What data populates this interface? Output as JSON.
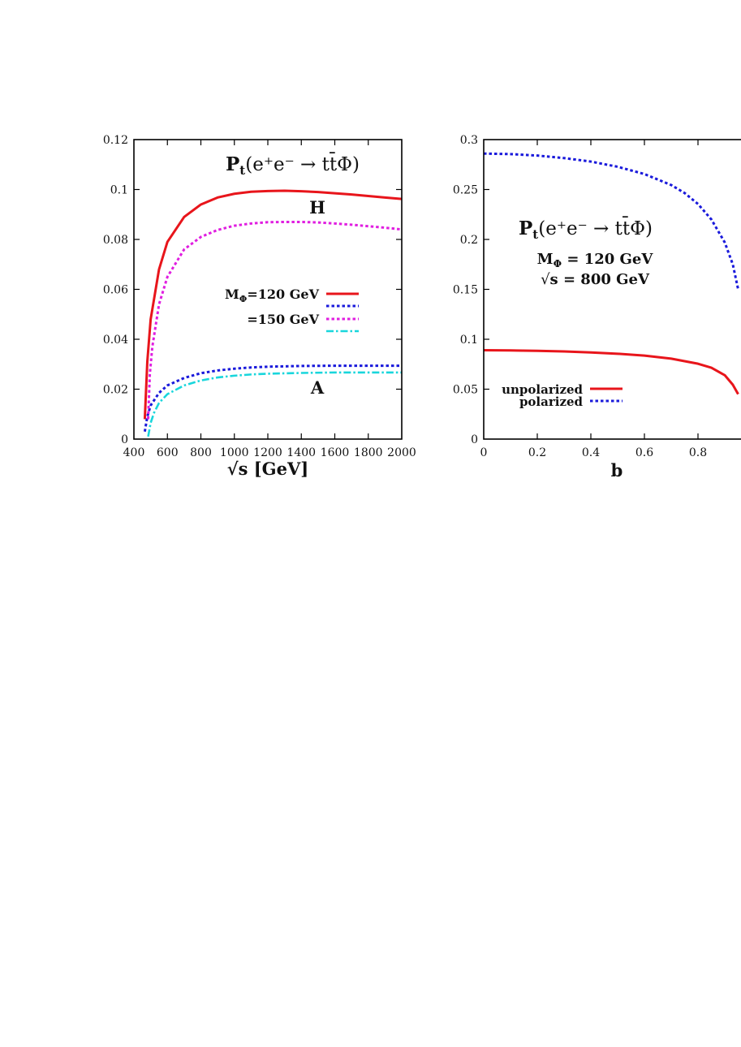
{
  "chart_data": [
    {
      "type": "line",
      "title": "P_t(e⁺e⁻ → tt̄Φ)",
      "title_parts": {
        "main": "P",
        "sub": "t",
        "rest": "(e⁺e⁻ → tt̄Φ)"
      },
      "xlabel": "√s [GeV]",
      "xlabel_parts": {
        "root": "√",
        "rest": "s [GeV]"
      },
      "ylabel": "",
      "xlim": [
        400,
        2000
      ],
      "ylim": [
        0,
        0.12
      ],
      "xticks": [
        400,
        600,
        800,
        1000,
        1200,
        1400,
        1600,
        1800,
        2000
      ],
      "xtick_labels": [
        "400",
        "600",
        "800",
        "1000",
        "1200",
        "1400",
        "1600",
        "1800",
        "2000"
      ],
      "yticks": [
        0,
        0.02,
        0.04,
        0.06,
        0.08,
        0.1,
        0.12
      ],
      "ytick_labels": [
        "0",
        "0.02",
        "0.04",
        "0.06",
        "0.08",
        "0.1",
        "0.12"
      ],
      "annotations": {
        "H": "H",
        "A": "A"
      },
      "legend": {
        "position": "center-right",
        "row1_main": "M",
        "row1_sub": "Φ",
        "row1_rest": "=120 GeV",
        "row2_text": "=150 GeV"
      },
      "series": [
        {
          "key": "H120",
          "color": "#e8151b",
          "style": "solid",
          "x": [
            465,
            480,
            500,
            550,
            600,
            700,
            800,
            900,
            1000,
            1100,
            1200,
            1300,
            1400,
            1500,
            1600,
            1700,
            1800,
            1900,
            2000
          ],
          "y": [
            0.008,
            0.031,
            0.048,
            0.068,
            0.079,
            0.089,
            0.094,
            0.0968,
            0.0983,
            0.0991,
            0.0994,
            0.0995,
            0.0993,
            0.099,
            0.0985,
            0.098,
            0.0974,
            0.0968,
            0.0962
          ]
        },
        {
          "key": "A120",
          "color": "#1a1adb",
          "style": "dotted",
          "x": [
            465,
            480,
            500,
            550,
            600,
            700,
            800,
            900,
            1000,
            1100,
            1200,
            1400,
            1600,
            1800,
            2000
          ],
          "y": [
            0.003,
            0.009,
            0.0135,
            0.0185,
            0.0215,
            0.0245,
            0.0264,
            0.0275,
            0.0282,
            0.0287,
            0.029,
            0.0293,
            0.0294,
            0.0294,
            0.0294
          ]
        },
        {
          "key": "H150",
          "color": "#e01ee0",
          "style": "dotted",
          "x": [
            485,
            495,
            510,
            550,
            600,
            700,
            800,
            900,
            1000,
            1100,
            1200,
            1300,
            1400,
            1500,
            1600,
            1700,
            1800,
            1900,
            2000
          ],
          "y": [
            0.008,
            0.026,
            0.037,
            0.054,
            0.065,
            0.076,
            0.081,
            0.0838,
            0.0855,
            0.0864,
            0.0869,
            0.087,
            0.087,
            0.0868,
            0.0864,
            0.0859,
            0.0853,
            0.0847,
            0.084
          ]
        },
        {
          "key": "A150",
          "color": "#19d6dc",
          "style": "dashdot",
          "x": [
            485,
            500,
            520,
            550,
            600,
            700,
            800,
            900,
            1000,
            1100,
            1200,
            1400,
            1600,
            1800,
            2000
          ],
          "y": [
            0.001,
            0.0065,
            0.0105,
            0.0145,
            0.018,
            0.0215,
            0.0235,
            0.0247,
            0.0254,
            0.0259,
            0.0262,
            0.0265,
            0.0267,
            0.0267,
            0.0267
          ]
        }
      ]
    },
    {
      "type": "line",
      "title": "P_t(e⁺e⁻ → tt̄Φ)",
      "title_parts": {
        "main": "P",
        "sub": "t",
        "rest": "(e⁺e⁻ → tt̄Φ)"
      },
      "subtitle1_parts": {
        "main": "M",
        "sub": "Φ",
        "rest": " = 120 GeV"
      },
      "subtitle2_parts": {
        "root": "√",
        "rest": "s = 800 GeV"
      },
      "xlabel": "b",
      "ylabel": "",
      "xlim": [
        0,
        1
      ],
      "ylim": [
        0,
        0.3
      ],
      "xticks": [
        0,
        0.2,
        0.4,
        0.6,
        0.8
      ],
      "xtick_labels": [
        "0",
        "0.2",
        "0.4",
        "0.6",
        "0.8"
      ],
      "yticks": [
        0,
        0.05,
        0.1,
        0.15,
        0.2,
        0.25,
        0.3
      ],
      "ytick_labels": [
        "0",
        "0.05",
        "0.1",
        "0.15",
        "0.2",
        "0.25",
        "0.3"
      ],
      "legend": {
        "position": "bottom-left",
        "entries": [
          "unpolarized",
          "polarized"
        ]
      },
      "series": [
        {
          "key": "unpolarized",
          "name": "unpolarized",
          "color": "#e8151b",
          "style": "solid",
          "x": [
            0,
            0.1,
            0.2,
            0.3,
            0.4,
            0.5,
            0.6,
            0.7,
            0.8,
            0.85,
            0.9,
            0.93,
            0.95
          ],
          "y": [
            0.089,
            0.0888,
            0.0884,
            0.0878,
            0.0868,
            0.0855,
            0.0836,
            0.0806,
            0.0755,
            0.0715,
            0.064,
            0.0545,
            0.045
          ]
        },
        {
          "key": "polarized",
          "name": "polarized",
          "color": "#1a1adb",
          "style": "dotted",
          "x": [
            0,
            0.1,
            0.2,
            0.3,
            0.4,
            0.5,
            0.6,
            0.7,
            0.75,
            0.8,
            0.85,
            0.9,
            0.93,
            0.95
          ],
          "y": [
            0.286,
            0.2855,
            0.284,
            0.2815,
            0.278,
            0.2728,
            0.2655,
            0.2545,
            0.2465,
            0.2355,
            0.22,
            0.197,
            0.175,
            0.15
          ]
        }
      ]
    }
  ]
}
